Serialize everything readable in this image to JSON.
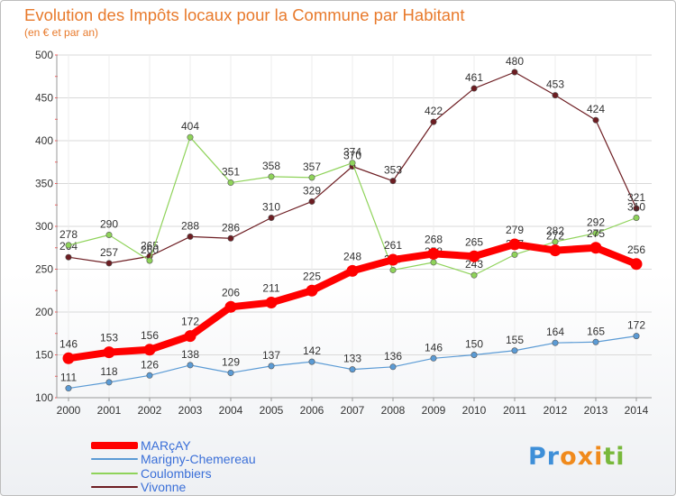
{
  "chart_data": {
    "type": "line",
    "title": "Evolution des Impôts locaux pour la Commune par Habitant",
    "subtitle": "(en € et par an)",
    "xlabel": "",
    "ylabel": "",
    "categories": [
      "2000",
      "2001",
      "2002",
      "2003",
      "2004",
      "2005",
      "2006",
      "2007",
      "2008",
      "2009",
      "2010",
      "2011",
      "2012",
      "2013",
      "2014"
    ],
    "ylim": [
      100,
      500
    ],
    "yticks": [
      100,
      150,
      200,
      250,
      300,
      350,
      400,
      450,
      500
    ],
    "grid": true,
    "legend_position": "bottom-left",
    "series": [
      {
        "name": "MARçAY",
        "color": "#ff0000",
        "values": [
          146,
          153,
          156,
          172,
          206,
          211,
          225,
          248,
          261,
          268,
          265,
          279,
          272,
          275,
          256
        ]
      },
      {
        "name": "Marigny-Chemereau",
        "color": "#5b9bd5",
        "values": [
          111,
          118,
          126,
          138,
          129,
          137,
          142,
          133,
          136,
          146,
          150,
          155,
          164,
          165,
          172
        ]
      },
      {
        "name": "Coulombiers",
        "color": "#8fd35a",
        "values": [
          278,
          290,
          260,
          404,
          351,
          358,
          357,
          374,
          249,
          258,
          243,
          267,
          282,
          292,
          310
        ]
      },
      {
        "name": "Vivonne",
        "color": "#6d1d22",
        "values": [
          264,
          257,
          265,
          288,
          286,
          310,
          329,
          370,
          353,
          422,
          461,
          480,
          453,
          424,
          321
        ]
      }
    ]
  },
  "logo": {
    "text": "Proxiti",
    "letters": [
      "P",
      "r",
      "o",
      "x",
      "i",
      "t",
      "i"
    ],
    "colors": [
      "#3e8fd8",
      "#3e8fd8",
      "#f08a1c",
      "#f08a1c",
      "#f08a1c",
      "#78b83b",
      "#78b83b"
    ]
  }
}
